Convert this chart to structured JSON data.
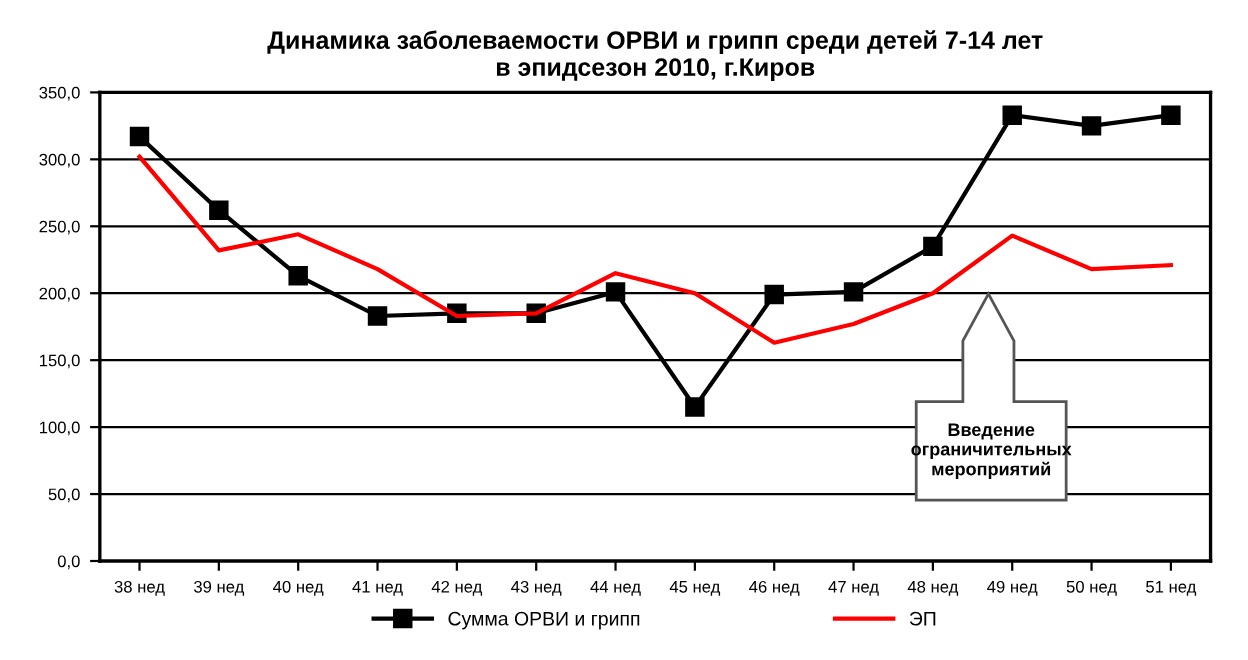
{
  "chart_data": {
    "type": "line",
    "title": "Динамика заболеваемости ОРВИ и грипп среди детей 7-14 лет\nв эпидсезон 2010, г.Киров",
    "categories": [
      "38 нед",
      "39 нед",
      "40 нед",
      "41 нед",
      "42 нед",
      "43 нед",
      "44 нед",
      "45 нед",
      "46 нед",
      "47 нед",
      "48 нед",
      "49 нед",
      "50 нед",
      "51 нед"
    ],
    "series": [
      {
        "name": "Сумма ОРВИ и грипп",
        "color": "#000000",
        "marker": "square",
        "values": [
          317,
          262,
          213,
          183,
          185,
          185,
          201,
          115,
          199,
          201,
          235,
          333,
          325,
          333
        ]
      },
      {
        "name": "ЭП",
        "color": "#ff0000",
        "marker": "none",
        "values": [
          302,
          232,
          244,
          218,
          183,
          185,
          215,
          200,
          163,
          177,
          200,
          243,
          218,
          221
        ]
      }
    ],
    "ylim": [
      0,
      350
    ],
    "yticks": [
      {
        "value": 0,
        "label": "0,0"
      },
      {
        "value": 50,
        "label": "50,0"
      },
      {
        "value": 100,
        "label": "100,0"
      },
      {
        "value": 150,
        "label": "150,0"
      },
      {
        "value": 200,
        "label": "200,0"
      },
      {
        "value": 250,
        "label": "250,0"
      },
      {
        "value": 300,
        "label": "300,0"
      },
      {
        "value": 350,
        "label": "350,0"
      }
    ],
    "grid": "y",
    "legend": "bottom",
    "line_style": "solid",
    "annotations": [
      "Введение\nограничительных\nмероприятий"
    ]
  }
}
